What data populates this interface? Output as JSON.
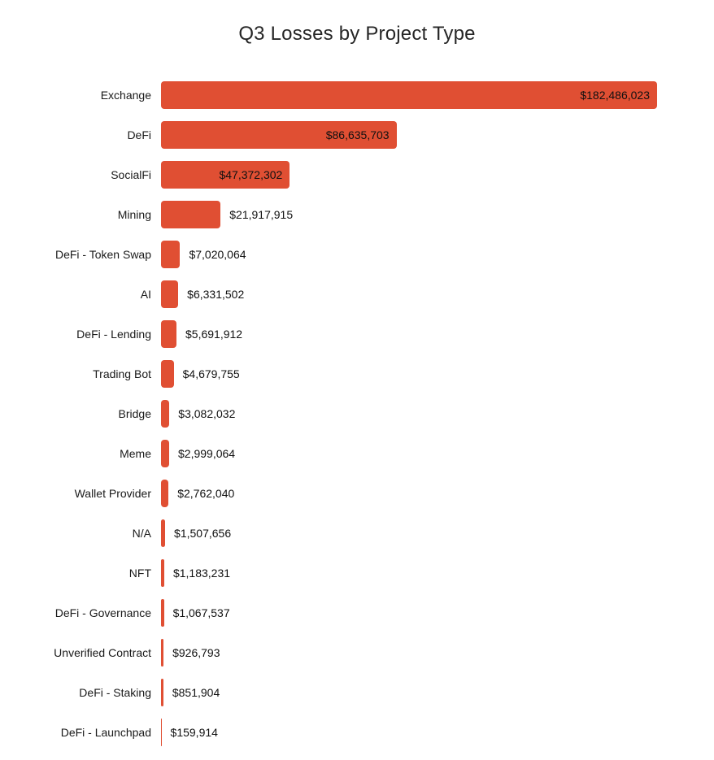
{
  "chart_data": {
    "type": "bar",
    "orientation": "horizontal",
    "title": "Q3 Losses by Project Type",
    "categories": [
      "Exchange",
      "DeFi",
      "SocialFi",
      "Mining",
      "DeFi - Token Swap",
      "AI",
      "DeFi - Lending",
      "Trading Bot",
      "Bridge",
      "Meme",
      "Wallet Provider",
      "N/A",
      "NFT",
      "DeFi - Governance",
      "Unverified Contract",
      "DeFi - Staking",
      "DeFi - Launchpad"
    ],
    "values": [
      182486023,
      86635703,
      47372302,
      21917915,
      7020064,
      6331502,
      5691912,
      4679755,
      3082032,
      2999064,
      2762040,
      1507656,
      1183231,
      1067537,
      926793,
      851904,
      159914
    ],
    "value_labels": [
      "$182,486,023",
      "$86,635,703",
      "$47,372,302",
      "$21,917,915",
      "$7,020,064",
      "$6,331,502",
      "$5,691,912",
      "$4,679,755",
      "$3,082,032",
      "$2,999,064",
      "$2,762,040",
      "$1,507,656",
      "$1,183,231",
      "$1,067,537",
      "$926,793",
      "$851,904",
      "$159,914"
    ],
    "xlim": [
      0,
      182486023
    ],
    "grid": false,
    "legend": "none",
    "bar_color": "#E04F33",
    "text_color": "#111111"
  }
}
